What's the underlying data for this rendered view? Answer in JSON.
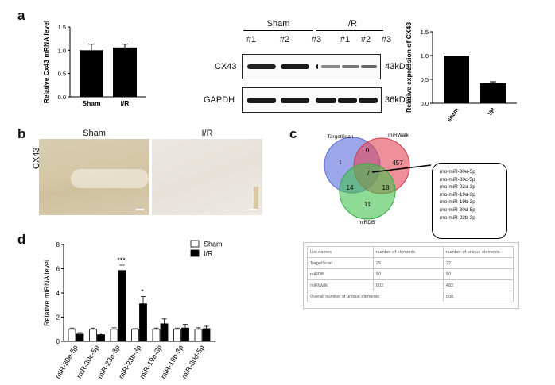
{
  "panels": {
    "a": "a",
    "b": "b",
    "c": "c",
    "d": "d"
  },
  "chart_a1": {
    "type": "bar",
    "ylabel": "Relative Cx43 mRNA level",
    "categories": [
      "Sham",
      "I/R"
    ],
    "values": [
      1.0,
      1.06
    ],
    "errors": [
      0.13,
      0.07
    ],
    "ylim": [
      0,
      1.5
    ],
    "yticks": [
      "0.0",
      "0.5",
      "1.0",
      "1.5"
    ],
    "color": "#000000"
  },
  "chart_a2": {
    "type": "bar",
    "ylabel": "Relative expression of CX43",
    "categories": [
      "sham",
      "I/R"
    ],
    "values": [
      1.0,
      0.42
    ],
    "errors": [
      0.0,
      0.03
    ],
    "ylim": [
      0,
      1.5
    ],
    "yticks": [
      "0.0",
      "0.5",
      "1.0",
      "1.5"
    ],
    "color": "#000000"
  },
  "western": {
    "group_sham": "Sham",
    "group_ir": "I/R",
    "lanes": [
      "#1",
      "#2",
      "#3",
      "#1",
      "#2",
      "#3"
    ],
    "row1_label": "CX43",
    "row1_size": "43kDa",
    "row2_label": "GAPDH",
    "row2_size": "36kDa"
  },
  "ihc": {
    "sham": "Sham",
    "ir": "I/R",
    "ylabel": "CX43"
  },
  "venn": {
    "labels": {
      "targetscan": "TargetScan",
      "mirwalk": "miRWalk",
      "mirdb": "miRDB"
    },
    "counts": {
      "ts_only": "1",
      "ts_walk": "0",
      "walk_only": "457",
      "all": "7",
      "ts_db": "14",
      "walk_db": "18",
      "db_only": "11"
    },
    "colors": {
      "targetscan": "#6f7fe0",
      "mirwalk": "#e04a5a",
      "mirdb": "#52c45a"
    },
    "callout": [
      "rno-miR-30e-5p",
      "rno-miR-30c-5p",
      "rno-miR-23a-3p",
      "rno-miR-19a-3p",
      "rno-miR-19b-3p",
      "rno-miR-30d-5p",
      "rno-miR-23b-3p"
    ]
  },
  "venn_table": {
    "headers": [
      "List names",
      "number of elements",
      "number of unique elements"
    ],
    "rows": [
      [
        "TargetScan",
        "25",
        "22"
      ],
      [
        "miRDB",
        "50",
        "50"
      ],
      [
        "miRWalk",
        "802",
        "482"
      ]
    ],
    "footer": [
      "Overall number of unique elements",
      "508"
    ]
  },
  "chart_d": {
    "type": "bar",
    "ylabel": "Relative miRNA level",
    "categories": [
      "miR-30e-5p",
      "miR-30c-5p",
      "miR-23a-3p",
      "miR-23b-3p",
      "miR-19a-3p",
      "miR-19b-3p",
      "miR-30d-5p"
    ],
    "series": [
      {
        "name": "Sham",
        "values": [
          1.0,
          1.0,
          1.0,
          1.0,
          1.0,
          1.0,
          1.0
        ],
        "errors": [
          0.1,
          0.1,
          0.12,
          0.05,
          0.1,
          0.1,
          0.12
        ],
        "color": "#ffffff"
      },
      {
        "name": "I/R",
        "values": [
          0.6,
          0.55,
          5.85,
          3.1,
          1.45,
          1.1,
          1.05
        ],
        "errors": [
          0.12,
          0.15,
          0.45,
          0.6,
          0.4,
          0.3,
          0.2
        ],
        "color": "#000000"
      }
    ],
    "significance": [
      "",
      "",
      "***",
      "*",
      "",
      "",
      ""
    ],
    "ylim": [
      0,
      8
    ],
    "yticks": [
      "0",
      "2",
      "4",
      "6",
      "8"
    ]
  }
}
